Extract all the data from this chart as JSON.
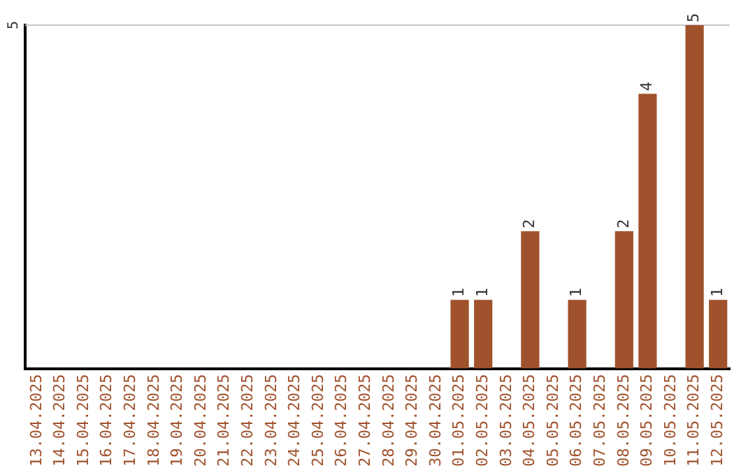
{
  "chart_data": {
    "type": "bar",
    "categories": [
      "13.04.2025",
      "14.04.2025",
      "15.04.2025",
      "16.04.2025",
      "17.04.2025",
      "18.04.2025",
      "19.04.2025",
      "20.04.2025",
      "21.04.2025",
      "22.04.2025",
      "23.04.2025",
      "24.04.2025",
      "25.04.2025",
      "26.04.2025",
      "27.04.2025",
      "28.04.2025",
      "29.04.2025",
      "30.04.2025",
      "01.05.2025",
      "02.05.2025",
      "03.05.2025",
      "04.05.2025",
      "05.05.2025",
      "06.05.2025",
      "07.05.2025",
      "08.05.2025",
      "09.05.2025",
      "10.05.2025",
      "11.05.2025",
      "12.05.2025"
    ],
    "values": [
      null,
      null,
      null,
      null,
      null,
      null,
      null,
      null,
      null,
      null,
      null,
      null,
      null,
      null,
      null,
      null,
      null,
      null,
      1,
      1,
      null,
      2,
      null,
      1,
      null,
      2,
      4,
      null,
      5,
      1
    ],
    "data_labels": true,
    "color": "#a0522d",
    "ref_lines": [
      {
        "axis": "y",
        "value": 5,
        "label": "5",
        "color": "#c8c8c8"
      }
    ],
    "legend": false
  }
}
